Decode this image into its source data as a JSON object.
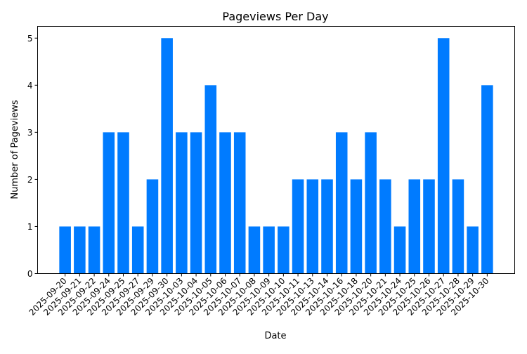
{
  "chart_data": {
    "type": "bar",
    "title": "Pageviews Per Day",
    "xlabel": "Date",
    "ylabel": "Number of Pageviews",
    "categories": [
      "2025-09-20",
      "2025-09-21",
      "2025-09-22",
      "2025-09-24",
      "2025-09-25",
      "2025-09-27",
      "2025-09-29",
      "2025-09-30",
      "2025-10-03",
      "2025-10-04",
      "2025-10-05",
      "2025-10-06",
      "2025-10-07",
      "2025-10-08",
      "2025-10-09",
      "2025-10-10",
      "2025-10-11",
      "2025-10-13",
      "2025-10-14",
      "2025-10-16",
      "2025-10-18",
      "2025-10-20",
      "2025-10-21",
      "2025-10-24",
      "2025-10-25",
      "2025-10-26",
      "2025-10-27",
      "2025-10-28",
      "2025-10-29",
      "2025-10-30"
    ],
    "values": [
      1,
      1,
      1,
      3,
      3,
      1,
      2,
      5,
      3,
      3,
      4,
      3,
      3,
      1,
      1,
      1,
      2,
      2,
      2,
      3,
      2,
      3,
      2,
      1,
      2,
      2,
      5,
      2,
      1,
      4
    ],
    "ylim": [
      0,
      5.25
    ],
    "yticks": [
      "0",
      "1",
      "2",
      "3",
      "4",
      "5"
    ],
    "grid": false,
    "bar_color": "#007bff"
  }
}
